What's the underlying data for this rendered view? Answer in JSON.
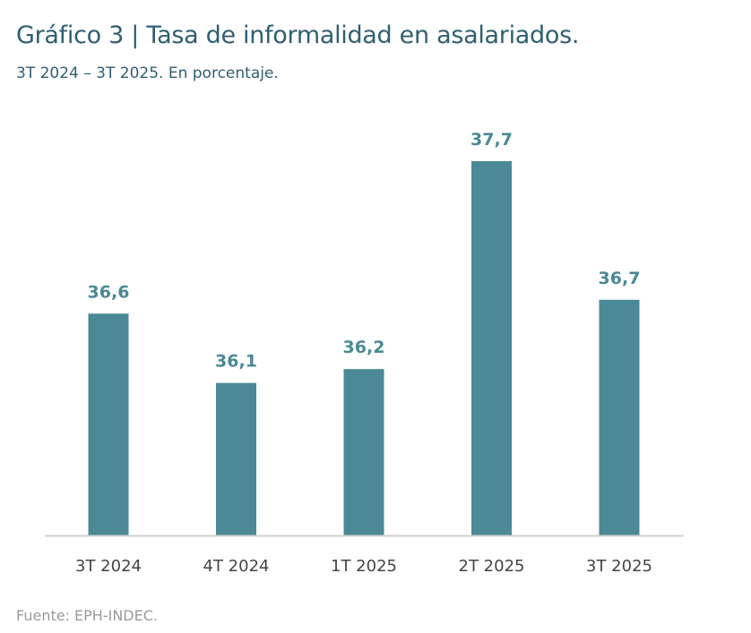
{
  "title": "Gráfico 3 | Tasa de informalidad en asalariados.",
  "subtitle": "3T 2024 – 3T 2025. En porcentaje.",
  "source": "Fuente: EPH-INDEC.",
  "colors": {
    "bar": "#4a8995",
    "title": "#2f5f70",
    "axis": "#d0d0d0"
  },
  "chart_data": {
    "type": "bar",
    "categories": [
      "3T 2024",
      "4T 2024",
      "1T 2025",
      "2T 2025",
      "3T 2025"
    ],
    "values": [
      36.6,
      36.1,
      36.2,
      37.7,
      36.7
    ],
    "data_labels": [
      "36,6",
      "36,1",
      "36,2",
      "37,7",
      "36,7"
    ],
    "ylim": [
      35,
      37.7
    ],
    "grid": false,
    "legend": "none"
  }
}
